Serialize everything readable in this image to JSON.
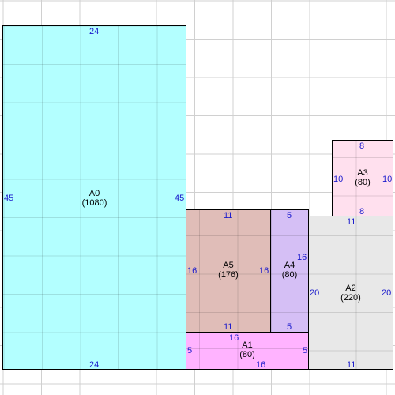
{
  "pieces": {
    "a0": {
      "name": "A0",
      "area": "(1080)",
      "top": "24",
      "bottom": "24",
      "left": "45",
      "right": "45",
      "color": "#b3ffff"
    },
    "a5": {
      "name": "A5",
      "area": "(176)",
      "top": "11",
      "bottom": "11",
      "left": "16",
      "right": "16",
      "color": "#e0bdb8"
    },
    "a4": {
      "name": "A4",
      "area": "(80)",
      "top": "5",
      "bottom": "5",
      "left": "16",
      "color": "#d5bff5"
    },
    "a3": {
      "name": "A3",
      "area": "(80)",
      "top": "8",
      "bottom": "8",
      "left": "10",
      "right": "10",
      "color": "#ffe0ee"
    },
    "a2": {
      "name": "A2",
      "area": "(220)",
      "top": "11",
      "bottom": "11",
      "left": "20",
      "right": "20",
      "color": "#e8e8e8"
    },
    "a1": {
      "name": "A1",
      "area": "(80)",
      "top": "16",
      "bottom": "16",
      "left": "5",
      "right": "5",
      "color": "#ffb3ff"
    }
  }
}
